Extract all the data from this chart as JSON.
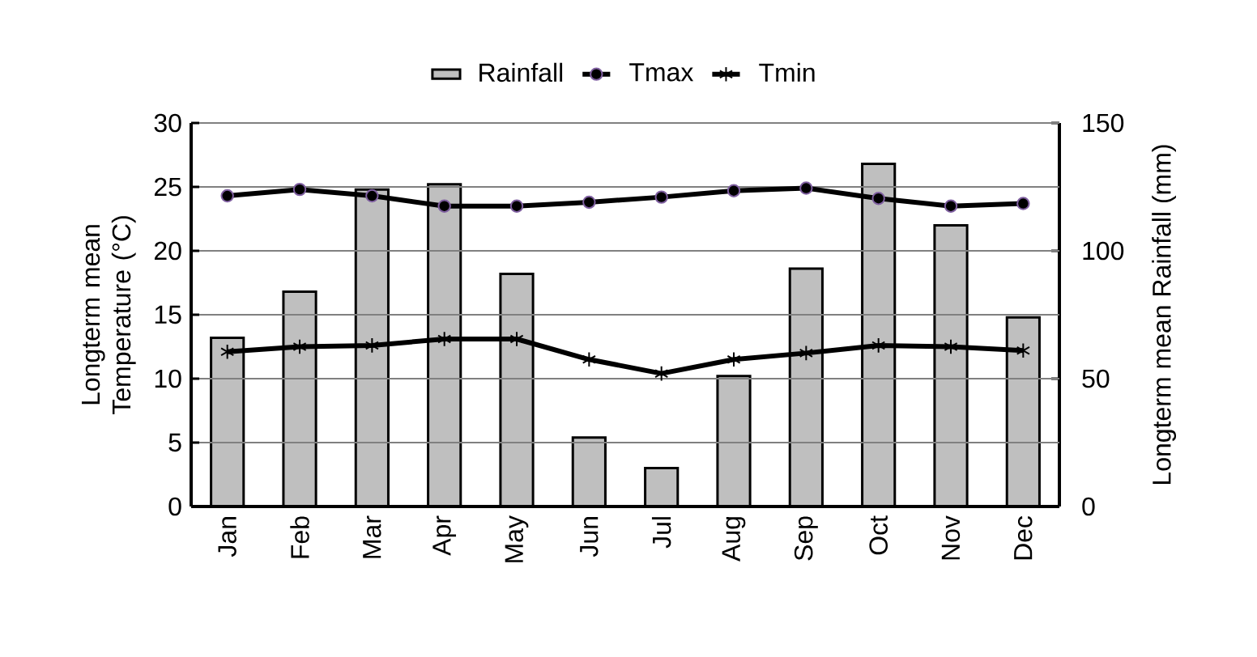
{
  "chart_data": {
    "type": "line",
    "categories": [
      "Jan",
      "Feb",
      "Mar",
      "Apr",
      "May",
      "Jun",
      "Jul",
      "Aug",
      "Sep",
      "Oct",
      "Nov",
      "Dec"
    ],
    "series": [
      {
        "name": "Rainfall",
        "type": "bar",
        "axis": "y2",
        "color": "#bfbfbf",
        "values": [
          66,
          84,
          124,
          126,
          91,
          27,
          15,
          51,
          93,
          134,
          110,
          74
        ]
      },
      {
        "name": "Tmax",
        "marker": "circle",
        "color": "#000000",
        "values": [
          24.3,
          24.8,
          24.3,
          23.5,
          23.5,
          23.8,
          24.2,
          24.7,
          24.9,
          24.1,
          23.5,
          23.7
        ]
      },
      {
        "name": "Tmin",
        "marker": "cross",
        "color": "#000000",
        "values": [
          12.1,
          12.5,
          12.6,
          13.1,
          13.1,
          11.5,
          10.4,
          11.5,
          12.0,
          12.6,
          12.5,
          12.2
        ]
      }
    ],
    "ylabel": "Longterm mean Temperature (°C)",
    "y2label": "Longterm mean Rainfall (mm)",
    "ylim": [
      0,
      30
    ],
    "yticks": [
      0,
      5,
      10,
      15,
      20,
      25,
      30
    ],
    "y2lim": [
      0,
      150
    ],
    "y2ticks": [
      0,
      50,
      100,
      150
    ],
    "grid": "y",
    "legend": "top"
  }
}
